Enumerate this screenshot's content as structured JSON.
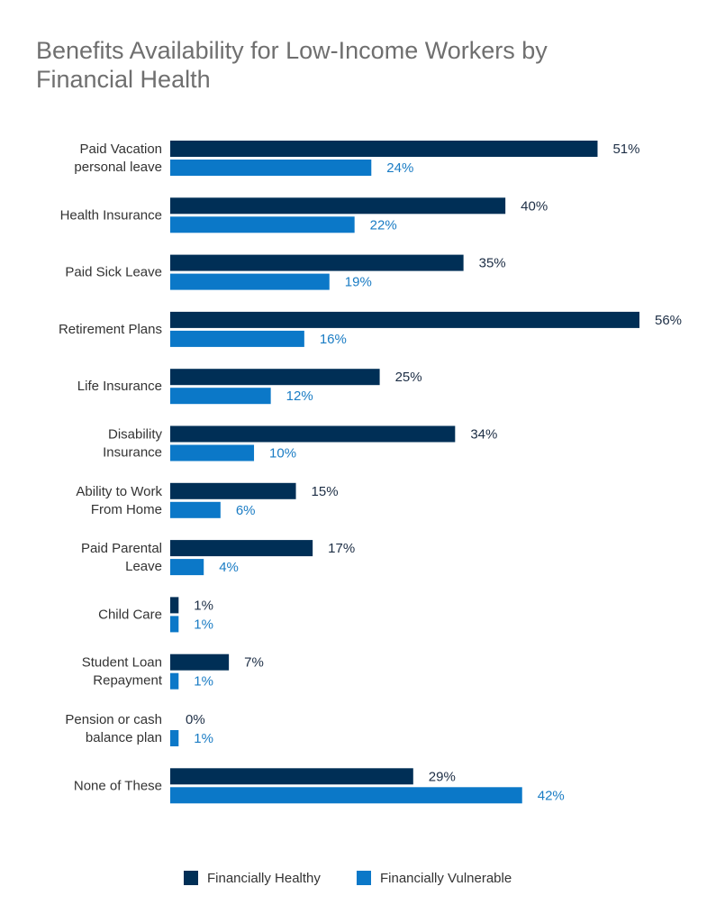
{
  "chart_data": {
    "type": "bar",
    "orientation": "horizontal",
    "title": "Benefits Availability for Low-Income Workers by\nFinancial Health",
    "categories": [
      "Paid Vacation\npersonal leave",
      "Health Insurance",
      "Paid Sick Leave",
      "Retirement Plans",
      "Life Insurance",
      "Disability\nInsurance",
      "Ability to Work\nFrom Home",
      "Paid Parental\nLeave",
      "Child Care",
      "Student Loan\nRepayment",
      "Pension or cash\nbalance plan",
      "None of These"
    ],
    "series": [
      {
        "name": "Financially Healthy",
        "color": "#002f56",
        "label_color": "#1d2e45",
        "values": [
          51,
          40,
          35,
          56,
          25,
          34,
          15,
          17,
          1,
          7,
          0,
          29
        ],
        "value_labels": [
          "51%",
          "40%",
          "35%",
          "56%",
          "25%",
          "34%",
          "15%",
          "17%",
          "1%",
          "7%",
          "0%",
          "29%"
        ]
      },
      {
        "name": "Financially Vulnerable",
        "color": "#0b78c8",
        "label_color": "#1a7cc4",
        "values": [
          24,
          22,
          19,
          16,
          12,
          10,
          6,
          4,
          1,
          1,
          1,
          42
        ],
        "value_labels": [
          "24%",
          "22%",
          "19%",
          "16%",
          "12%",
          "10%",
          "6%",
          "4%",
          "1%",
          "1%",
          "1%",
          "42%"
        ]
      }
    ],
    "xlim": [
      0,
      56
    ],
    "legend": "bottom"
  }
}
